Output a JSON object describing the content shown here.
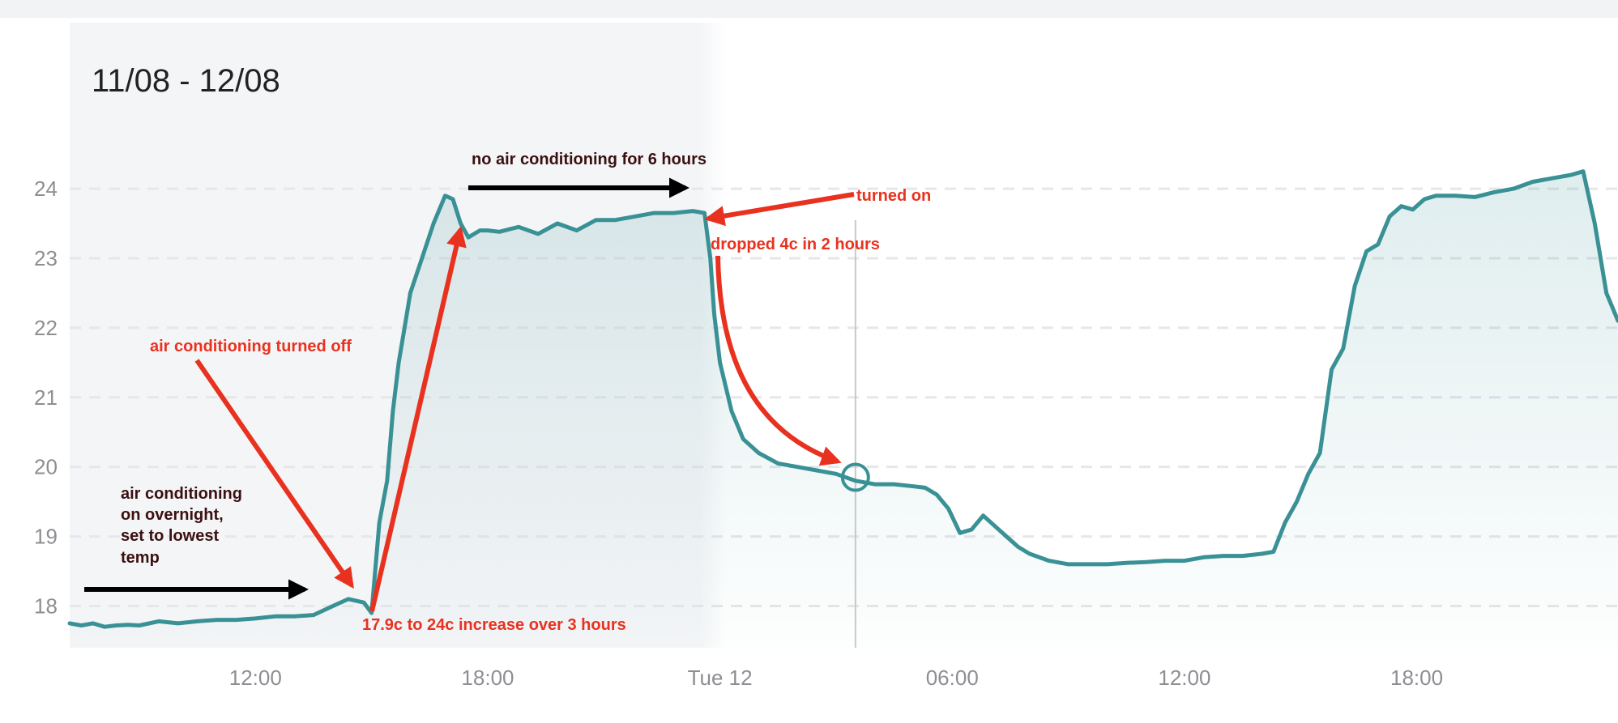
{
  "chart_data": {
    "type": "line",
    "title": "11/08 - 12/08",
    "xlabel": "",
    "ylabel": "",
    "ylim": [
      17.4,
      25.2
    ],
    "yticks": [
      "24",
      "23",
      "22",
      "21",
      "20",
      "19",
      "18"
    ],
    "ytick_values": [
      24,
      23,
      22,
      21,
      20,
      19,
      18
    ],
    "xticks": [
      "12:00",
      "18:00",
      "Tue 12",
      "06:00",
      "12:00",
      "18:00"
    ],
    "xtick_hours": [
      12,
      18,
      24,
      30,
      36,
      42
    ],
    "xlim_hours": [
      7.2,
      47.2
    ],
    "grid": "horizontal-dashed",
    "line_color": "#3a9195",
    "cursor_hour": 27.5,
    "marker": {
      "x_hour": 27.5,
      "y": 19.85
    },
    "highlight_range_hours": [
      7.2,
      24.0
    ],
    "series": [
      {
        "x_hours": [
          7.2,
          7.5,
          7.8,
          8.1,
          8.4,
          8.7,
          9.0,
          9.5,
          10.0,
          10.5,
          11.0,
          11.5,
          12.0,
          12.5,
          13.0,
          13.5,
          14.0,
          14.4,
          14.8,
          15.0,
          15.2,
          15.4,
          15.55,
          15.7,
          15.85,
          16.0,
          16.3,
          16.6,
          16.9,
          17.1,
          17.3,
          17.5,
          17.65,
          17.8,
          18.0,
          18.3,
          18.8,
          19.3,
          19.8,
          20.3,
          20.8,
          21.3,
          21.8,
          22.3,
          22.8,
          23.3,
          23.6,
          23.75,
          23.85,
          24.0,
          24.3,
          24.6,
          25.0,
          25.5,
          26.0,
          26.5,
          27.0,
          27.5,
          28.0,
          28.5,
          29.0,
          29.3,
          29.6,
          29.9,
          30.2,
          30.5,
          30.8,
          31.1,
          31.4,
          31.7,
          32.0,
          32.5,
          33.0,
          33.5,
          34.0,
          34.5,
          35.0,
          35.5,
          36.0,
          36.5,
          37.0,
          37.5,
          38.0,
          38.3,
          38.6,
          38.9,
          39.2,
          39.5,
          39.8,
          40.1,
          40.4,
          40.7,
          41.0,
          41.3,
          41.6,
          41.9,
          42.2,
          42.5,
          43.0,
          43.5,
          44.0,
          44.5,
          45.0,
          45.5,
          46.0,
          46.3,
          46.6,
          46.9,
          47.2
        ],
        "values": [
          17.75,
          17.72,
          17.75,
          17.7,
          17.72,
          17.73,
          17.72,
          17.78,
          17.75,
          17.78,
          17.8,
          17.8,
          17.82,
          17.85,
          17.85,
          17.87,
          18.0,
          18.1,
          18.05,
          17.9,
          19.2,
          19.8,
          20.8,
          21.5,
          22.0,
          22.5,
          23.0,
          23.5,
          23.9,
          23.85,
          23.5,
          23.3,
          23.35,
          23.4,
          23.4,
          23.38,
          23.45,
          23.35,
          23.5,
          23.4,
          23.55,
          23.55,
          23.6,
          23.65,
          23.65,
          23.68,
          23.65,
          23.0,
          22.2,
          21.5,
          20.8,
          20.4,
          20.2,
          20.05,
          20.0,
          19.95,
          19.9,
          19.8,
          19.75,
          19.75,
          19.72,
          19.7,
          19.6,
          19.4,
          19.05,
          19.1,
          19.3,
          19.15,
          19.0,
          18.85,
          18.75,
          18.65,
          18.6,
          18.6,
          18.6,
          18.62,
          18.63,
          18.65,
          18.65,
          18.7,
          18.72,
          18.72,
          18.75,
          18.78,
          19.2,
          19.5,
          19.9,
          20.2,
          21.4,
          21.7,
          22.6,
          23.1,
          23.2,
          23.6,
          23.75,
          23.7,
          23.85,
          23.9,
          23.9,
          23.88,
          23.95,
          24.0,
          24.1,
          24.15,
          24.2,
          24.25,
          23.5,
          22.5,
          22.1
        ]
      }
    ],
    "annotations": [
      {
        "text": "no air conditioning for 6 hours",
        "style": "dark"
      },
      {
        "text": "turned on",
        "style": "red"
      },
      {
        "text": "dropped 4c in 2 hours",
        "style": "red"
      },
      {
        "text": "air conditioning turned off",
        "style": "red"
      },
      {
        "text": "air conditioning",
        "style": "dark"
      },
      {
        "text": "on overnight,",
        "style": "dark"
      },
      {
        "text": "set to lowest",
        "style": "dark"
      },
      {
        "text": "temp",
        "style": "dark"
      },
      {
        "text": "17.9c to 24c increase over 3 hours",
        "style": "red"
      }
    ],
    "annotation_colors": {
      "red": "#e8321f",
      "dark": "#3b1010",
      "arrow_black": "#000000"
    }
  }
}
